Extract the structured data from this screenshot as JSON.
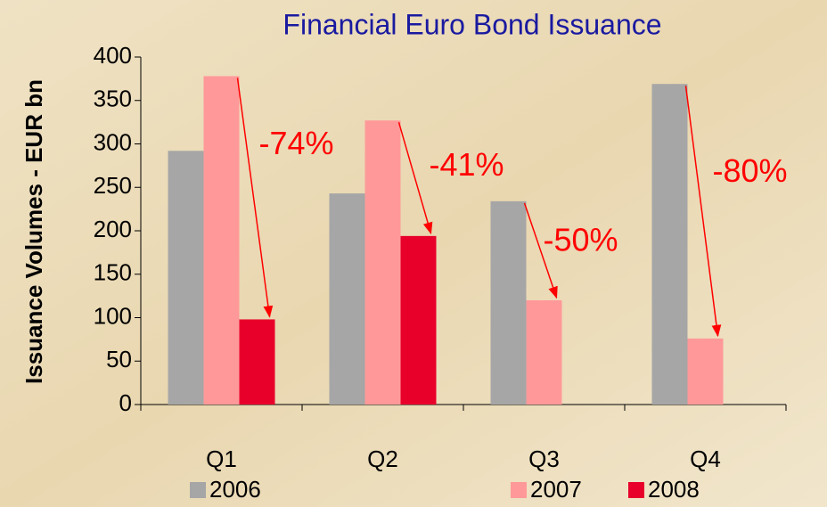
{
  "chart_data": {
    "type": "bar",
    "title": "Financial Euro Bond Issuance",
    "y_label": "Issuance Volumes - EUR bn",
    "categories": [
      "Q1",
      "Q2",
      "Q3",
      "Q4"
    ],
    "series": [
      {
        "name": "2006",
        "color": "#a6a6a6",
        "values": [
          292,
          243,
          234,
          369
        ]
      },
      {
        "name": "2007",
        "color": "#ff9999",
        "values": [
          378,
          327,
          120,
          76
        ]
      },
      {
        "name": "2008",
        "color": "#e8002b",
        "values": [
          98,
          194,
          null,
          null
        ]
      }
    ],
    "annotations": [
      "-74%",
      "-41%",
      "-50%",
      "-80%"
    ],
    "annotation_color": "#ff0000",
    "ylim": [
      0,
      400
    ],
    "yticks": [
      0,
      50,
      100,
      150,
      200,
      250,
      300,
      350,
      400
    ]
  }
}
